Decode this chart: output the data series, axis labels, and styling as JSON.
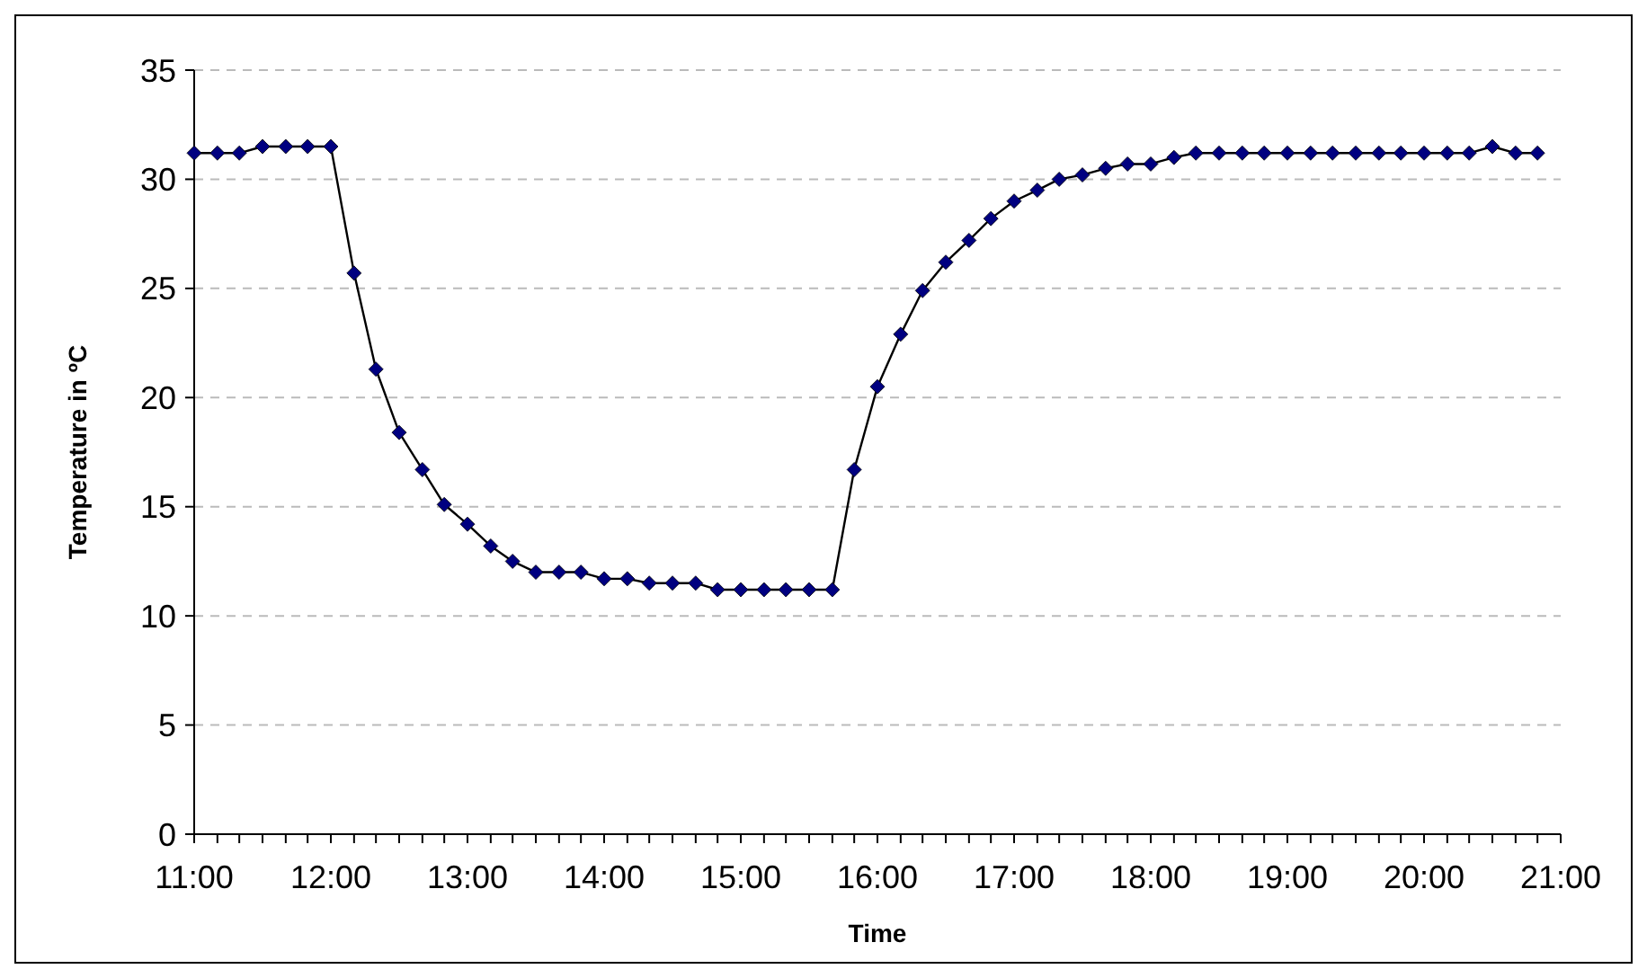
{
  "chart_data": {
    "type": "line",
    "xlabel": "Time",
    "ylabel": "Temperature in ºC",
    "x": [
      11,
      11.17,
      11.33,
      11.5,
      11.67,
      11.83,
      12,
      12.17,
      12.33,
      12.5,
      12.67,
      12.83,
      13,
      13.17,
      13.33,
      13.5,
      13.67,
      13.83,
      14,
      14.17,
      14.33,
      14.5,
      14.67,
      14.83,
      15,
      15.17,
      15.33,
      15.5,
      15.67,
      15.83,
      16,
      16.17,
      16.33,
      16.5,
      16.67,
      16.83,
      17,
      17.17,
      17.33,
      17.5,
      17.67,
      17.83,
      18,
      18.17,
      18.33,
      18.5,
      18.67,
      18.83,
      19,
      19.17,
      19.33,
      19.5,
      19.67,
      19.83,
      20,
      20.17,
      20.33,
      20.5,
      20.67,
      20.83
    ],
    "series": [
      {
        "color": "#000080",
        "values": [
          31.2,
          31.2,
          31.2,
          31.5,
          31.5,
          31.5,
          31.5,
          25.7,
          21.3,
          18.4,
          16.7,
          15.1,
          14.2,
          13.2,
          12.5,
          12.0,
          12.0,
          12.0,
          11.7,
          11.7,
          11.5,
          11.5,
          11.5,
          11.2,
          11.2,
          11.2,
          11.2,
          11.2,
          11.2,
          16.7,
          20.5,
          22.9,
          24.9,
          26.2,
          27.2,
          28.2,
          29.0,
          29.5,
          30.0,
          30.2,
          30.5,
          30.7,
          30.7,
          31.0,
          31.2,
          31.2,
          31.2,
          31.2,
          31.2,
          31.2,
          31.2,
          31.2,
          31.2,
          31.2,
          31.2,
          31.2,
          31.2,
          31.5,
          31.2,
          31.2
        ]
      }
    ],
    "xlim": [
      11,
      21
    ],
    "xticks": [
      {
        "value": 11,
        "label": "11:00"
      },
      {
        "value": 11.17,
        "label": null
      },
      {
        "value": 11.33,
        "label": null
      },
      {
        "value": 11.5,
        "label": null
      },
      {
        "value": 11.67,
        "label": null
      },
      {
        "value": 11.83,
        "label": null
      },
      {
        "value": 12,
        "label": "12:00"
      },
      {
        "value": 12.17,
        "label": null
      },
      {
        "value": 12.33,
        "label": null
      },
      {
        "value": 12.5,
        "label": null
      },
      {
        "value": 12.67,
        "label": null
      },
      {
        "value": 12.83,
        "label": null
      },
      {
        "value": 13,
        "label": "13:00"
      },
      {
        "value": 13.17,
        "label": null
      },
      {
        "value": 13.33,
        "label": null
      },
      {
        "value": 13.5,
        "label": null
      },
      {
        "value": 13.67,
        "label": null
      },
      {
        "value": 13.83,
        "label": null
      },
      {
        "value": 14,
        "label": "14:00"
      },
      {
        "value": 14.17,
        "label": null
      },
      {
        "value": 14.33,
        "label": null
      },
      {
        "value": 14.5,
        "label": null
      },
      {
        "value": 14.67,
        "label": null
      },
      {
        "value": 14.83,
        "label": null
      },
      {
        "value": 15,
        "label": "15:00"
      },
      {
        "value": 15.17,
        "label": null
      },
      {
        "value": 15.33,
        "label": null
      },
      {
        "value": 15.5,
        "label": null
      },
      {
        "value": 15.67,
        "label": null
      },
      {
        "value": 15.83,
        "label": null
      },
      {
        "value": 16,
        "label": "16:00"
      },
      {
        "value": 16.17,
        "label": null
      },
      {
        "value": 16.33,
        "label": null
      },
      {
        "value": 16.5,
        "label": null
      },
      {
        "value": 16.67,
        "label": null
      },
      {
        "value": 16.83,
        "label": null
      },
      {
        "value": 17,
        "label": "17:00"
      },
      {
        "value": 17.17,
        "label": null
      },
      {
        "value": 17.33,
        "label": null
      },
      {
        "value": 17.5,
        "label": null
      },
      {
        "value": 17.67,
        "label": null
      },
      {
        "value": 17.83,
        "label": null
      },
      {
        "value": 18,
        "label": "18:00"
      },
      {
        "value": 18.17,
        "label": null
      },
      {
        "value": 18.33,
        "label": null
      },
      {
        "value": 18.5,
        "label": null
      },
      {
        "value": 18.67,
        "label": null
      },
      {
        "value": 18.83,
        "label": null
      },
      {
        "value": 19,
        "label": "19:00"
      },
      {
        "value": 19.17,
        "label": null
      },
      {
        "value": 19.33,
        "label": null
      },
      {
        "value": 19.5,
        "label": null
      },
      {
        "value": 19.67,
        "label": null
      },
      {
        "value": 19.83,
        "label": null
      },
      {
        "value": 20,
        "label": "20:00"
      },
      {
        "value": 20.17,
        "label": null
      },
      {
        "value": 20.33,
        "label": null
      },
      {
        "value": 20.5,
        "label": null
      },
      {
        "value": 20.67,
        "label": null
      },
      {
        "value": 20.83,
        "label": null
      },
      {
        "value": 21,
        "label": "21:00"
      }
    ],
    "ylim": [
      0,
      35
    ],
    "yticks": [
      0,
      5,
      10,
      15,
      20,
      25,
      30,
      35
    ],
    "grid": "y",
    "marker": "diamond",
    "line_style": "solid"
  }
}
